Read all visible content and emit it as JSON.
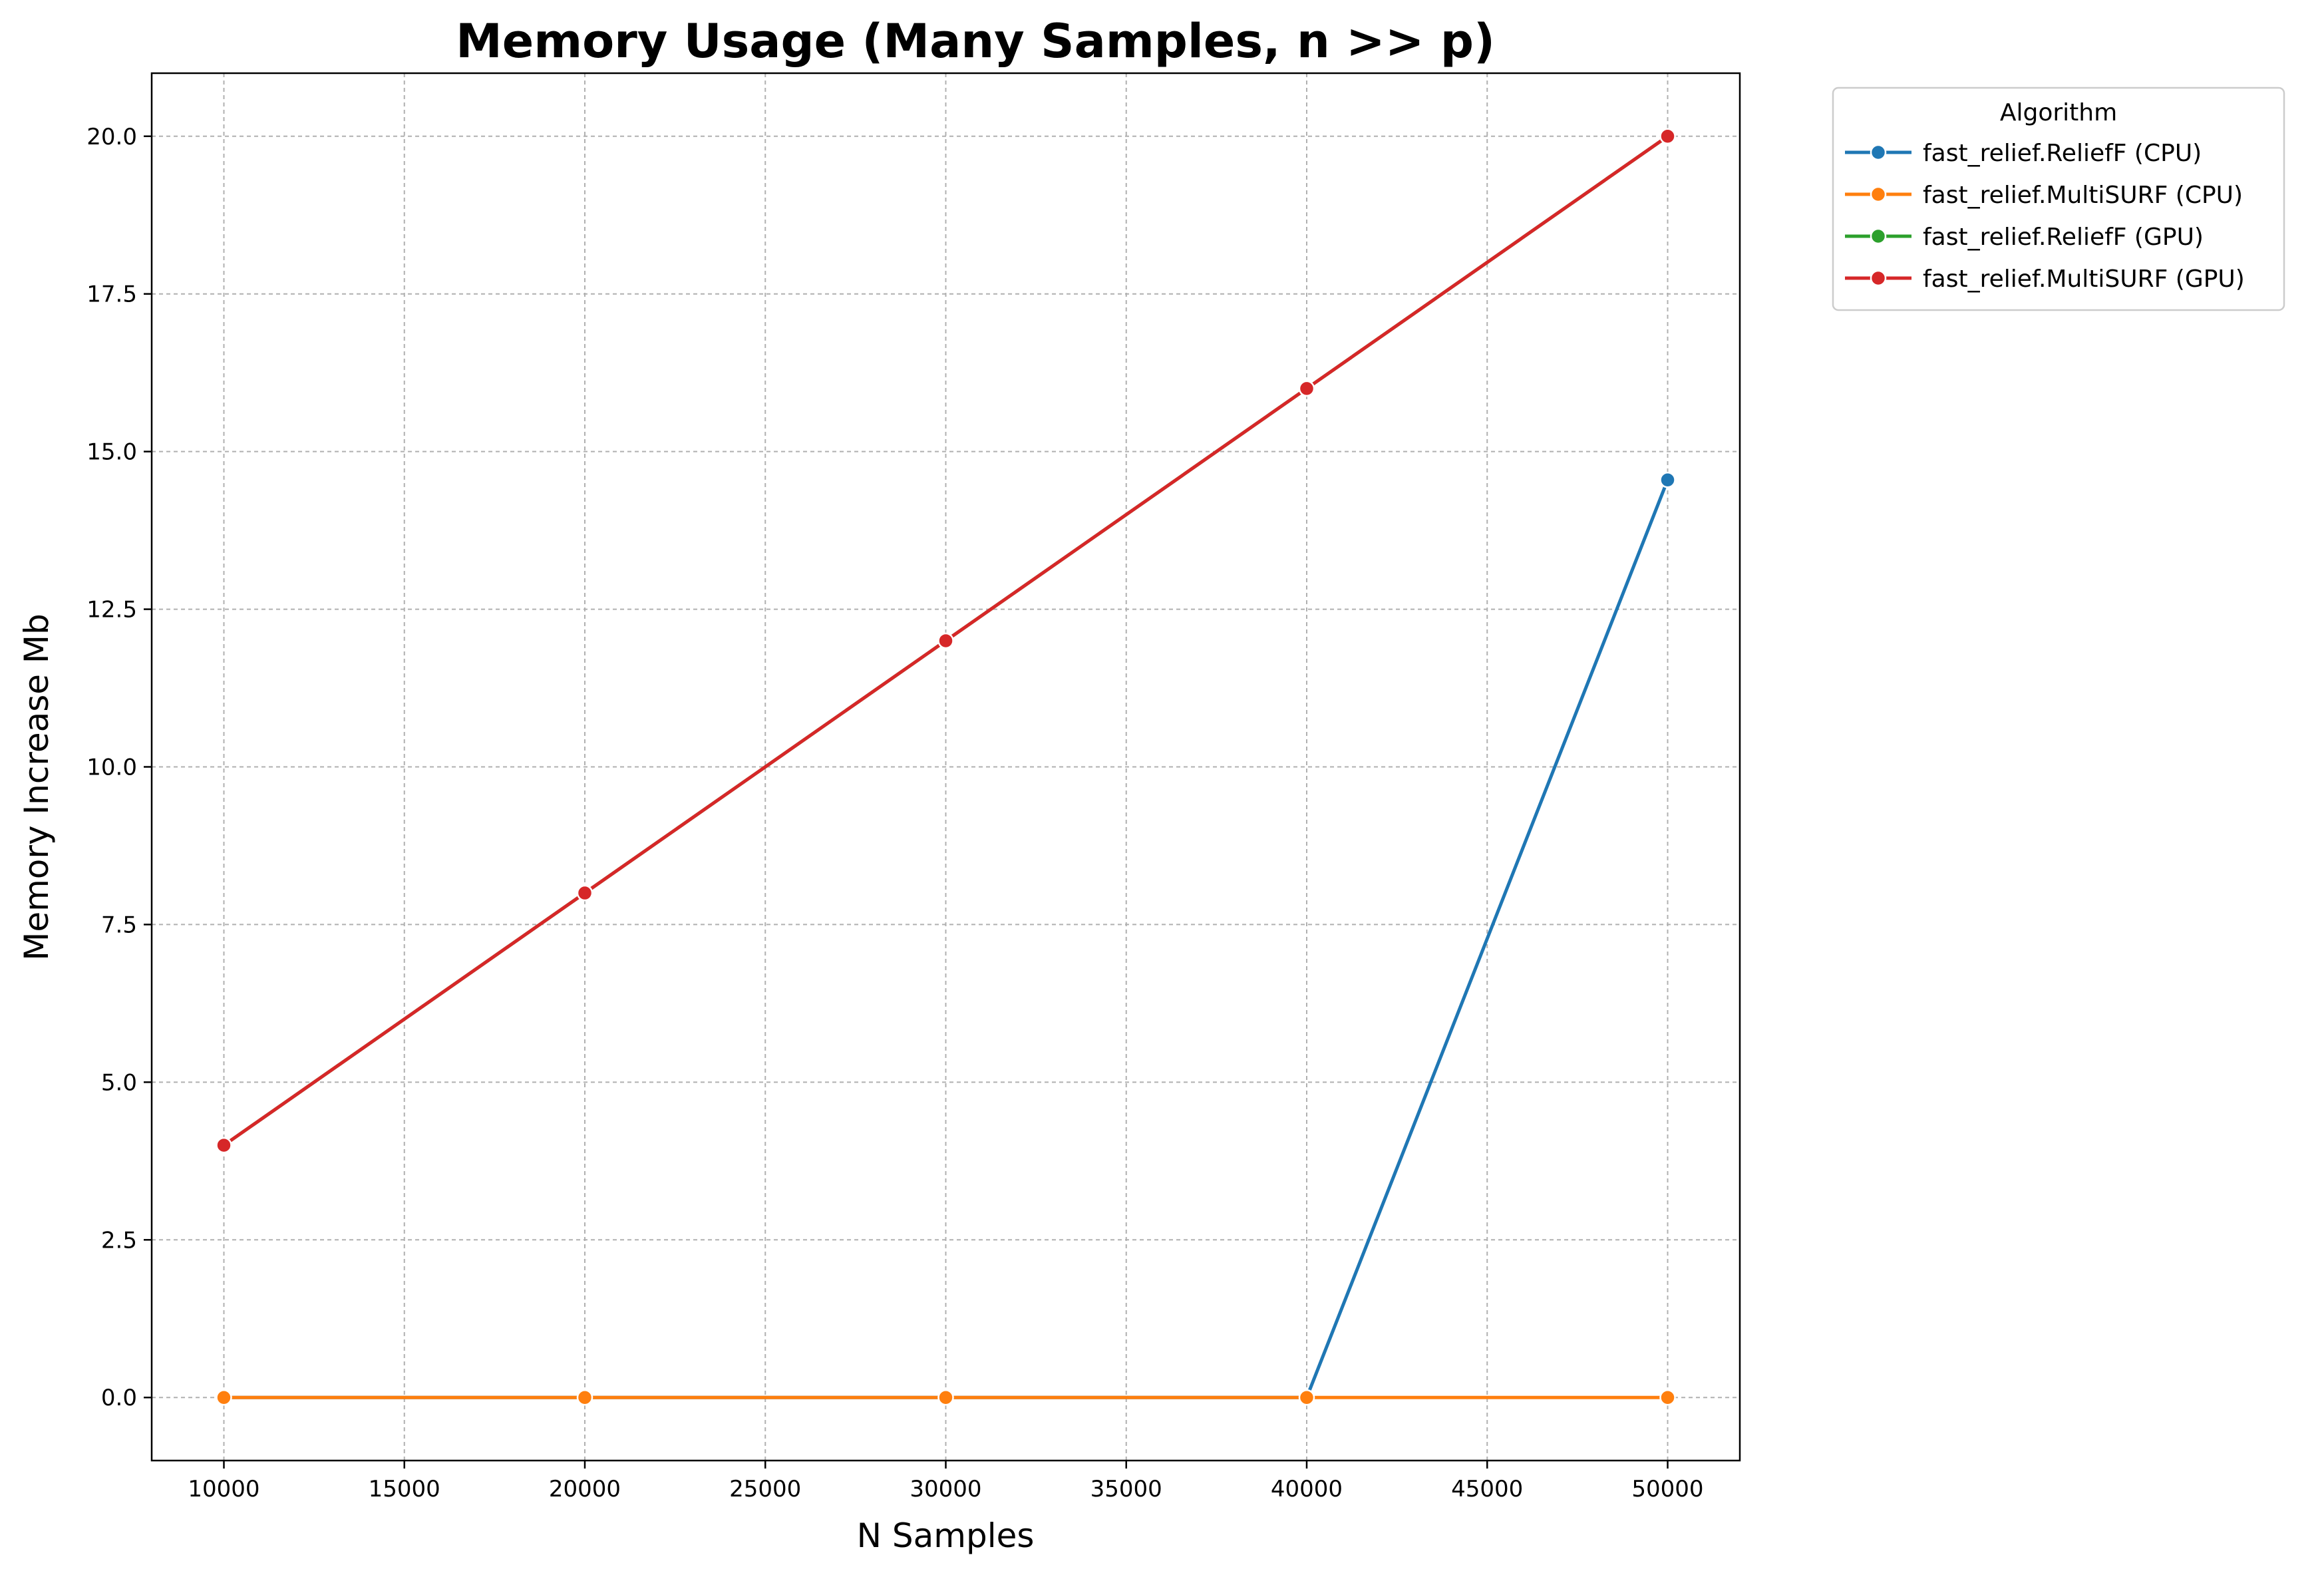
{
  "chart_data": {
    "type": "line",
    "title": "Memory Usage (Many Samples, n >> p)",
    "xlabel": "N Samples",
    "ylabel": "Memory Increase Mb",
    "xlim": [
      8000,
      52000
    ],
    "ylim": [
      -1.0,
      21.0
    ],
    "x_ticks": [
      10000,
      15000,
      20000,
      25000,
      30000,
      35000,
      40000,
      45000,
      50000
    ],
    "y_ticks": [
      0.0,
      2.5,
      5.0,
      7.5,
      10.0,
      12.5,
      15.0,
      17.5,
      20.0
    ],
    "x_tick_labels": [
      "10000",
      "15000",
      "20000",
      "25000",
      "30000",
      "35000",
      "40000",
      "45000",
      "50000"
    ],
    "y_tick_labels": [
      "0.0",
      "2.5",
      "5.0",
      "7.5",
      "10.0",
      "12.5",
      "15.0",
      "17.5",
      "20.0"
    ],
    "grid": true,
    "legend": {
      "title": "Algorithm",
      "placement": "outside-top-right"
    },
    "x": [
      10000,
      20000,
      30000,
      40000,
      50000
    ],
    "series": [
      {
        "name": "fast_relief.ReliefF (CPU)",
        "color": "#1f77b4",
        "values": [
          0.0,
          0.0,
          0.0,
          0.0,
          14.55
        ]
      },
      {
        "name": "fast_relief.MultiSURF (CPU)",
        "color": "#ff7f0e",
        "values": [
          0.0,
          0.0,
          0.0,
          0.0,
          0.0
        ]
      },
      {
        "name": "fast_relief.ReliefF (GPU)",
        "color": "#2ca02c",
        "values": [
          4.0,
          8.0,
          12.0,
          16.0,
          20.0
        ]
      },
      {
        "name": "fast_relief.MultiSURF (GPU)",
        "color": "#d62728",
        "values": [
          4.0,
          8.0,
          12.0,
          16.0,
          20.0
        ]
      }
    ]
  }
}
